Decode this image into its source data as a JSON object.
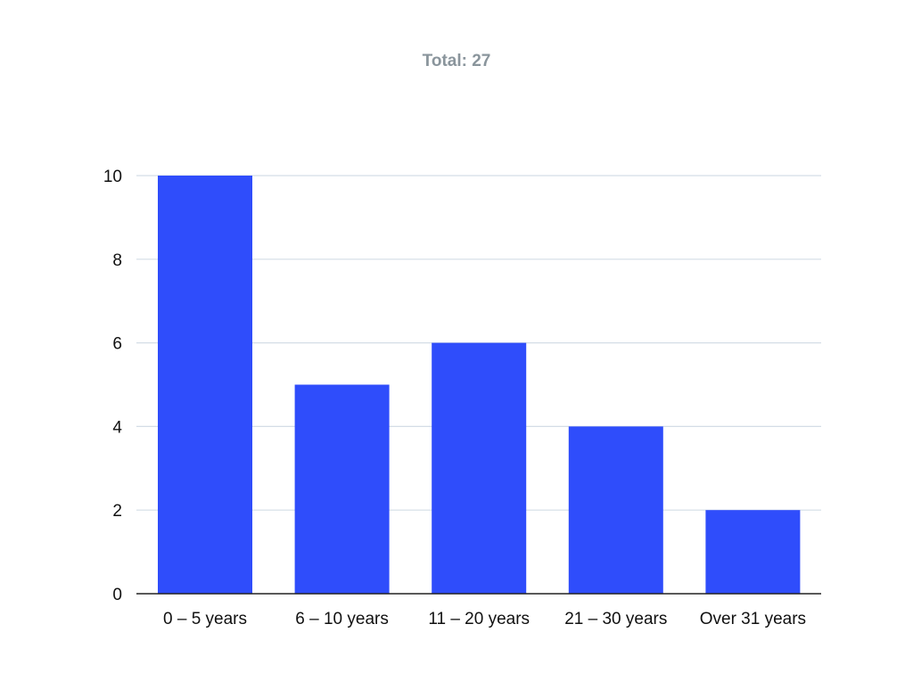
{
  "chart_data": {
    "type": "bar",
    "title": "Total: 27",
    "categories": [
      "0 – 5 years",
      "6 – 10 years",
      "11 – 20 years",
      "21 – 30 years",
      "Over 31 years"
    ],
    "values": [
      10,
      5,
      6,
      4,
      2
    ],
    "ylim": [
      0,
      10
    ],
    "yticks": [
      0,
      2,
      4,
      6,
      8,
      10
    ],
    "xlabel": "",
    "ylabel": "",
    "grid": true,
    "legend": "none",
    "colors": {
      "bar": "#2f4dfb",
      "grid": "#d4dde6",
      "axis": "#222222",
      "title": "#8a959c"
    }
  }
}
